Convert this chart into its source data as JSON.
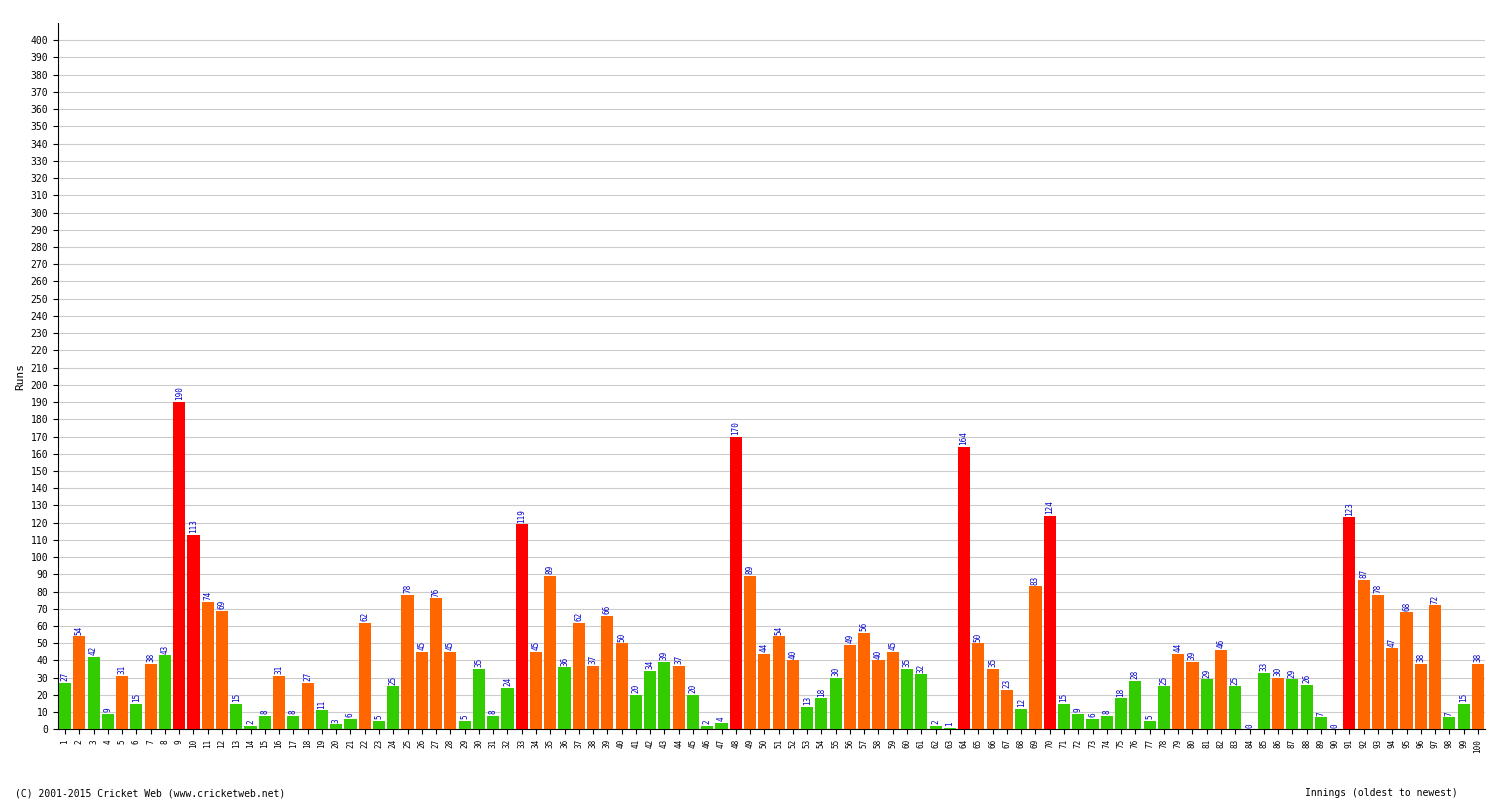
{
  "title": "",
  "ylabel": "Runs",
  "background_color": "#ffffff",
  "grid_color": "#cccccc",
  "ylim": [
    0,
    410
  ],
  "text_color": "#0000cc",
  "font_size_label": 7,
  "bottom_label": "Innings (oldest to newest)",
  "copyright": "(C) 2001-2015 Cricket Web (www.cricketweb.net)",
  "scores": [
    27,
    54,
    42,
    9,
    31,
    15,
    38,
    43,
    190,
    113,
    74,
    69,
    15,
    2,
    8,
    31,
    8,
    27,
    11,
    3,
    6,
    62,
    5,
    25,
    78,
    45,
    76,
    45,
    5,
    35,
    8,
    24,
    119,
    45,
    89,
    36,
    62,
    37,
    66,
    50,
    20,
    34,
    39,
    37,
    20,
    2,
    4,
    170,
    89,
    44,
    54,
    40,
    13,
    18,
    30,
    49,
    56,
    40,
    45,
    35,
    32,
    2,
    1,
    164,
    50,
    35,
    23,
    12,
    83,
    124,
    15,
    9,
    6,
    8,
    18,
    28,
    5,
    25,
    44,
    39,
    29,
    46,
    25,
    0,
    33,
    30,
    29,
    26,
    7,
    0,
    123,
    87,
    78,
    47,
    68,
    38,
    72,
    7,
    15,
    38
  ],
  "colors": [
    "#33cc00",
    "#ff6600",
    "#33cc00",
    "#33cc00",
    "#ff6600",
    "#33cc00",
    "#ff6600",
    "#33cc00",
    "#ff0000",
    "#ff0000",
    "#ff6600",
    "#ff6600",
    "#33cc00",
    "#33cc00",
    "#33cc00",
    "#ff6600",
    "#33cc00",
    "#ff6600",
    "#33cc00",
    "#33cc00",
    "#33cc00",
    "#ff6600",
    "#33cc00",
    "#33cc00",
    "#ff6600",
    "#ff6600",
    "#ff6600",
    "#ff6600",
    "#33cc00",
    "#33cc00",
    "#33cc00",
    "#33cc00",
    "#ff0000",
    "#ff6600",
    "#ff6600",
    "#33cc00",
    "#ff6600",
    "#ff6600",
    "#ff6600",
    "#ff6600",
    "#33cc00",
    "#33cc00",
    "#33cc00",
    "#ff6600",
    "#33cc00",
    "#33cc00",
    "#33cc00",
    "#ff0000",
    "#ff6600",
    "#ff6600",
    "#ff6600",
    "#ff6600",
    "#33cc00",
    "#33cc00",
    "#33cc00",
    "#ff6600",
    "#ff6600",
    "#ff6600",
    "#ff6600",
    "#33cc00",
    "#33cc00",
    "#33cc00",
    "#33cc00",
    "#ff0000",
    "#ff6600",
    "#ff6600",
    "#ff6600",
    "#33cc00",
    "#ff6600",
    "#ff0000",
    "#33cc00",
    "#33cc00",
    "#33cc00",
    "#33cc00",
    "#33cc00",
    "#33cc00",
    "#33cc00",
    "#33cc00",
    "#ff6600",
    "#ff6600",
    "#33cc00",
    "#ff6600",
    "#33cc00",
    "#33cc00",
    "#33cc00",
    "#ff6600",
    "#33cc00",
    "#33cc00",
    "#33cc00",
    "#33cc00",
    "#ff0000",
    "#ff6600",
    "#ff6600",
    "#ff6600",
    "#ff6600",
    "#ff6600",
    "#ff6600",
    "#33cc00",
    "#33cc00",
    "#ff6600"
  ],
  "xtick_labels": [
    "1",
    "2",
    "3",
    "4",
    "5",
    "6",
    "7",
    "8",
    "9",
    "10",
    "11",
    "12",
    "13",
    "14",
    "15",
    "16",
    "17",
    "18",
    "19",
    "20",
    "21",
    "22",
    "23",
    "24",
    "25",
    "26",
    "27",
    "28",
    "29",
    "30",
    "31",
    "32",
    "33",
    "34",
    "35",
    "36",
    "37",
    "38",
    "39",
    "40",
    "41",
    "42",
    "43",
    "44",
    "45",
    "46",
    "47",
    "48",
    "49",
    "50",
    "51",
    "52",
    "53",
    "54",
    "55",
    "56",
    "57",
    "58",
    "59",
    "60",
    "61",
    "62",
    "63",
    "64",
    "65",
    "66",
    "67",
    "68",
    "69",
    "70",
    "71",
    "72",
    "73",
    "74",
    "75",
    "76",
    "77",
    "78",
    "79",
    "80",
    "81",
    "82",
    "83",
    "84",
    "85",
    "86",
    "87",
    "88",
    "89",
    "90",
    "91",
    "92",
    "93",
    "94",
    "95",
    "96",
    "97",
    "98",
    "99",
    "100"
  ]
}
